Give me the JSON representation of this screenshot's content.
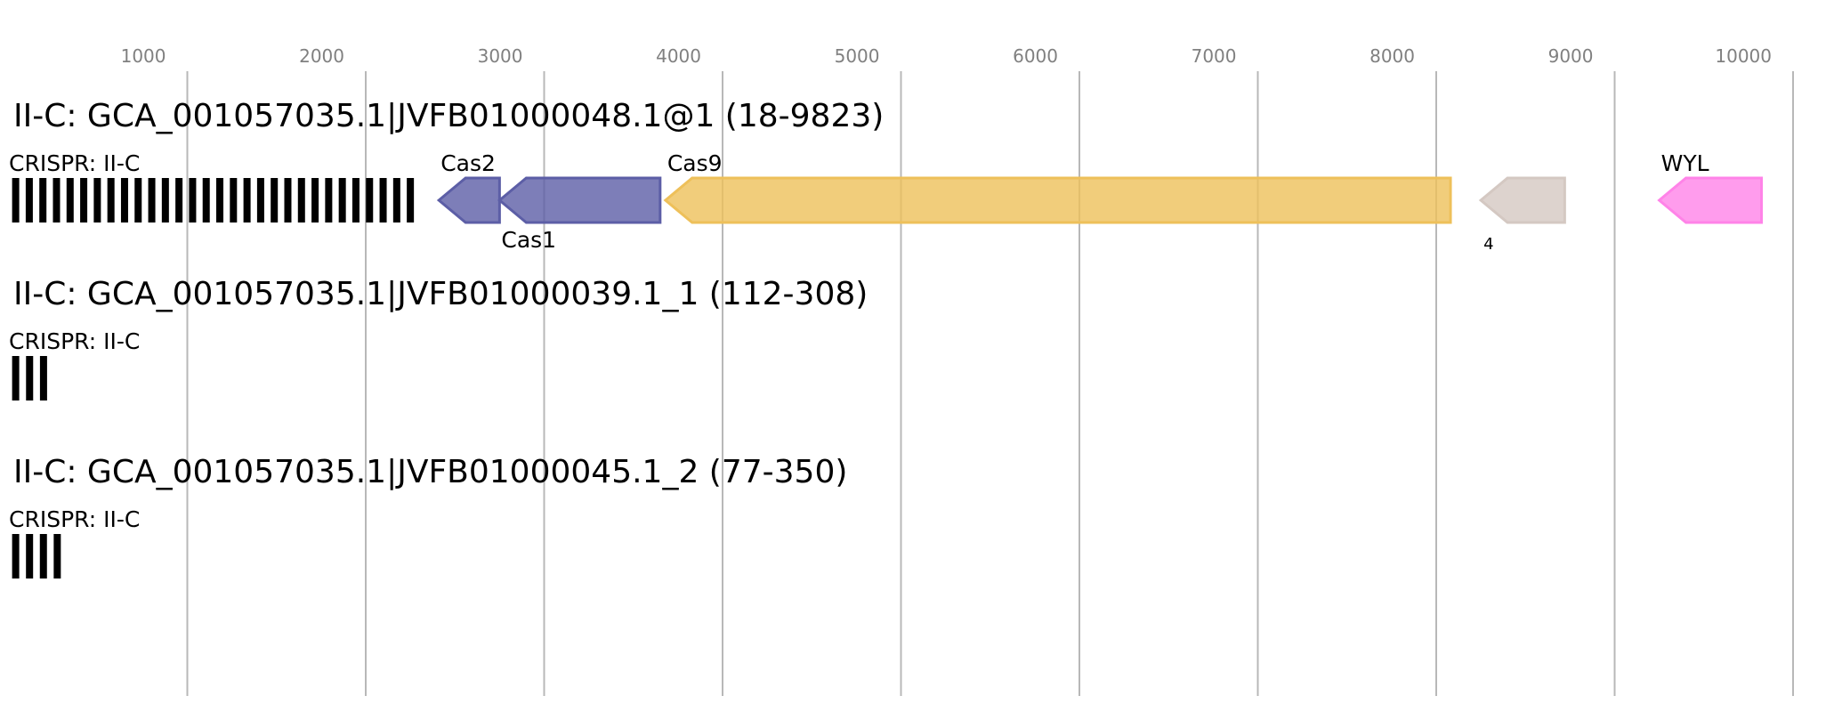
{
  "axis": {
    "ticks": [
      1000,
      2000,
      3000,
      4000,
      5000,
      6000,
      7000,
      8000,
      9000,
      10000
    ],
    "tick_labels": [
      "1000",
      "2000",
      "3000",
      "4000",
      "5000",
      "6000",
      "7000",
      "8000",
      "9000",
      "10000"
    ]
  },
  "loci": [
    {
      "title": "II-C: GCA_001057035.1|JVFB01000048.1@1 (18-9823)",
      "crispr_label": "CRISPR: II-C",
      "crispr": {
        "start": 18,
        "end": 2270,
        "repeats": 30
      },
      "genes": [
        {
          "label": "Cas2",
          "start": 2410,
          "end": 2750,
          "strand": "-",
          "color": "#5c5ea6",
          "label_pos": "above"
        },
        {
          "label": "Cas1",
          "start": 2750,
          "end": 3650,
          "strand": "-",
          "color": "#5c5ea6",
          "label_pos": "below"
        },
        {
          "label": "Cas9",
          "start": 3680,
          "end": 8080,
          "strand": "-",
          "color": "#eec05a",
          "label_pos": "above"
        },
        {
          "label": "4",
          "start": 8250,
          "end": 8720,
          "strand": "-",
          "color": "#d4c8c2",
          "label_pos": "below-small"
        },
        {
          "label": "WYL",
          "start": 9250,
          "end": 9823,
          "strand": "-",
          "color": "#ff83e8",
          "label_pos": "above"
        }
      ]
    },
    {
      "title": "II-C: GCA_001057035.1|JVFB01000039.1_1 (112-308)",
      "crispr_label": "CRISPR: II-C",
      "crispr": {
        "start": 18,
        "end": 214,
        "repeats": 3
      },
      "genes": []
    },
    {
      "title": "II-C: GCA_001057035.1|JVFB01000045.1_2 (77-350)",
      "crispr_label": "CRISPR: II-C",
      "crispr": {
        "start": 18,
        "end": 291,
        "repeats": 4
      },
      "genes": []
    }
  ],
  "colors": {
    "crispr": "#000000",
    "grid": "#b8b8b8",
    "tick_text": "#808080"
  }
}
